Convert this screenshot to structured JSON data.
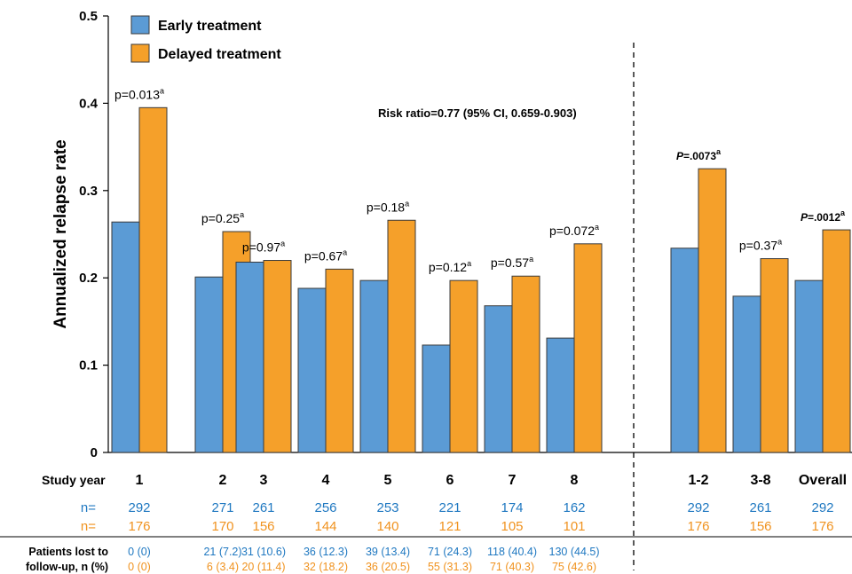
{
  "chart_data": {
    "type": "bar",
    "ylabel": "Annualized relapse rate",
    "ylim": [
      0,
      0.5
    ],
    "yticks": [
      "0",
      "0.1",
      "0.2",
      "0.3",
      "0.4",
      "0.5"
    ],
    "ytick_values": [
      0,
      0.1,
      0.2,
      0.3,
      0.4,
      0.5
    ],
    "legend_position": "top-left",
    "categories": [
      "1",
      "2",
      "3",
      "4",
      "5",
      "6",
      "7",
      "8",
      "1-2",
      "3-8",
      "Overall"
    ],
    "series": [
      {
        "name": "Early treatment",
        "color": "#5b9bd5",
        "values": [
          0.264,
          0.201,
          0.218,
          0.188,
          0.197,
          0.123,
          0.168,
          0.131,
          0.234,
          0.179,
          0.197
        ]
      },
      {
        "name": "Delayed treatment",
        "color": "#f5a02a",
        "values": [
          0.395,
          0.253,
          0.22,
          0.21,
          0.266,
          0.197,
          0.202,
          0.239,
          0.325,
          0.222,
          0.255
        ]
      }
    ],
    "pvalues": [
      {
        "prefix": "p=",
        "value": "0.013",
        "sup": "a",
        "style": "normal"
      },
      {
        "prefix": "p=",
        "value": "0.25",
        "sup": "a",
        "style": "normal"
      },
      {
        "prefix": "p=",
        "value": "0.97",
        "sup": "a",
        "style": "normal"
      },
      {
        "prefix": "p=",
        "value": "0.67",
        "sup": "a",
        "style": "normal"
      },
      {
        "prefix": "p=",
        "value": "0.18",
        "sup": "a",
        "style": "normal"
      },
      {
        "prefix": "p=",
        "value": "0.12",
        "sup": "a",
        "style": "normal"
      },
      {
        "prefix": "p=",
        "value": "0.57",
        "sup": "a",
        "style": "normal"
      },
      {
        "prefix": "p=",
        "value": "0.072",
        "sup": "a",
        "style": "normal"
      },
      {
        "prefix": "P",
        "value": "=.0073",
        "sup": "a",
        "style": "bold"
      },
      {
        "prefix": "p=",
        "value": "0.37",
        "sup": "a",
        "style": "normal"
      },
      {
        "prefix": "P",
        "value": "=.0012",
        "sup": "a",
        "style": "bold"
      }
    ],
    "annotation": "Risk ratio=0.77  (95% CI, 0.659-0.903)",
    "study_year_label": "Study year",
    "n_label": "n=",
    "n_early": [
      "292",
      "271",
      "261",
      "256",
      "253",
      "221",
      "174",
      "162",
      "292",
      "261",
      "292"
    ],
    "n_delayed": [
      "176",
      "170",
      "156",
      "144",
      "140",
      "121",
      "105",
      "101",
      "176",
      "156",
      "176"
    ],
    "lost_label_line1": "Patients lost to",
    "lost_label_line2": "follow-up, n (%)",
    "lost_early": [
      "0 (0)",
      "21 (7.2)",
      "31 (10.6)",
      "36 (12.3)",
      "39 (13.4)",
      "71 (24.3)",
      "118 (40.4)",
      "130 (44.5)"
    ],
    "lost_delayed": [
      "0 (0)",
      "6  (3.4)",
      "20 (11.4)",
      "32 (18.2)",
      "36 (20.5)",
      "55 (31.3)",
      "71 (40.3)",
      "75 (42.6)"
    ],
    "colors": {
      "early_text": "#1f78c1",
      "delayed_text": "#f0921e",
      "axis": "#000000"
    }
  }
}
